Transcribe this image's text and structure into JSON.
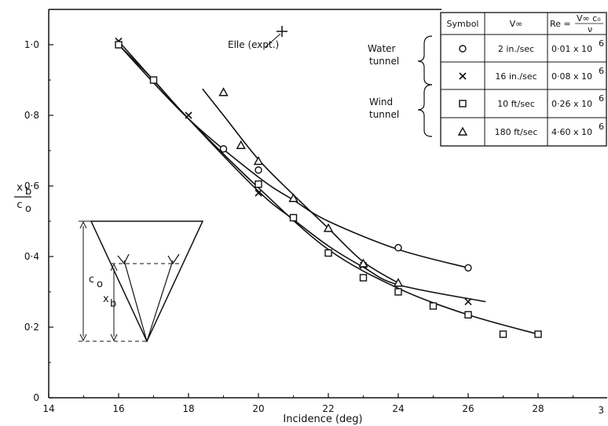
{
  "chart_data": {
    "type": "scatter",
    "xlabel": "Incidence (deg)",
    "ylabel_top": "x",
    "ylabel_top_sub": "b",
    "ylabel_bottom": "c",
    "ylabel_bottom_sub": "o",
    "xlim": [
      14,
      30
    ],
    "ylim": [
      0,
      1.1
    ],
    "xticks": [
      14,
      16,
      18,
      20,
      22,
      24,
      26,
      28
    ],
    "xtick_labels": [
      "14",
      "16",
      "18",
      "20",
      "22",
      "24",
      "26",
      "28"
    ],
    "extra_xtick_label": "3",
    "yticks": [
      0,
      0.2,
      0.4,
      0.6,
      0.8,
      1.0
    ],
    "ytick_labels": [
      "0",
      "0·2",
      "0·4",
      "0·6",
      "0·8",
      "1·0"
    ],
    "series": [
      {
        "marker": "circle",
        "x": [
          16,
          19,
          20,
          21,
          24,
          26
        ],
        "y": [
          1.0,
          0.705,
          0.645,
          0.51,
          0.425,
          0.368
        ]
      },
      {
        "marker": "cross",
        "x": [
          16,
          18,
          20,
          23,
          26
        ],
        "y": [
          1.01,
          0.8,
          0.58,
          0.375,
          0.272
        ]
      },
      {
        "marker": "square",
        "x": [
          16,
          17,
          20,
          21,
          22,
          23,
          24,
          25,
          26,
          27,
          28
        ],
        "y": [
          1.0,
          0.9,
          0.605,
          0.51,
          0.41,
          0.34,
          0.3,
          0.26,
          0.235,
          0.18,
          0.18
        ]
      },
      {
        "marker": "triangle",
        "x": [
          19,
          19.5,
          20,
          21,
          22,
          23,
          24
        ],
        "y": [
          0.865,
          0.715,
          0.67,
          0.565,
          0.48,
          0.38,
          0.325
        ]
      }
    ],
    "curves": [
      {
        "x": [
          16,
          18,
          20,
          21,
          22,
          24,
          26
        ],
        "y": [
          1.0,
          0.79,
          0.625,
          0.56,
          0.5,
          0.42,
          0.368
        ]
      },
      {
        "x": [
          16,
          18,
          20,
          21,
          22,
          23,
          24,
          26.5
        ],
        "y": [
          1.01,
          0.79,
          0.585,
          0.505,
          0.43,
          0.37,
          0.32,
          0.272
        ]
      },
      {
        "x": [
          16,
          17,
          18,
          20,
          22,
          24,
          26,
          28
        ],
        "y": [
          1.0,
          0.9,
          0.79,
          0.595,
          0.42,
          0.31,
          0.235,
          0.18
        ]
      },
      {
        "x": [
          18.4,
          19,
          20,
          21,
          22,
          23,
          24
        ],
        "y": [
          0.875,
          0.8,
          0.675,
          0.575,
          0.48,
          0.385,
          0.325
        ]
      }
    ],
    "elle_point": {
      "x": 21,
      "y": 1.0,
      "label": "Elle (expt.)"
    },
    "group_labels": [
      {
        "line1": "Water",
        "line2": "tunnel"
      },
      {
        "line1": "Wind",
        "line2": "tunnel"
      }
    ],
    "legend": {
      "headers": {
        "symbol": "Symbol",
        "v": "V∞",
        "re": "Re =",
        "re_num": "V∞ c₀",
        "re_den": "ν"
      },
      "rows": [
        {
          "marker": "circle",
          "v": "2 in./sec",
          "re": "0·01  x 10",
          "exp": "6"
        },
        {
          "marker": "cross",
          "v": "16 in./sec",
          "re": "0·08 x 10",
          "exp": "6"
        },
        {
          "marker": "square",
          "v": "10 ft/sec",
          "re": "0·26 x 10",
          "exp": "6"
        },
        {
          "marker": "triangle",
          "v": "180 ft/sec",
          "re": "4·60 x 10",
          "exp": "6"
        }
      ]
    },
    "inset": {
      "label_co": "c",
      "label_co_sub": "o",
      "label_xb": "x",
      "label_xb_sub": "b"
    },
    "grid": false
  }
}
